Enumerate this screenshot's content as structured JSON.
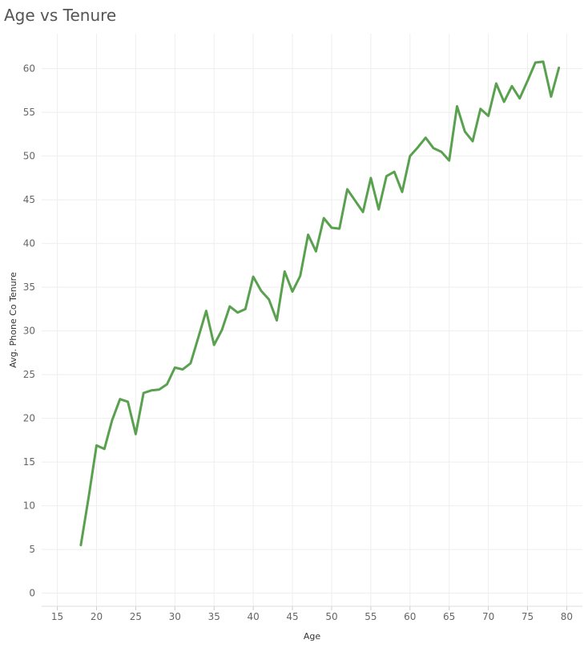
{
  "chart_data": {
    "type": "line",
    "title": "Age vs Tenure",
    "xlabel": "Age",
    "ylabel": "Avg. Phone Co Tenure",
    "xlim": [
      13,
      82
    ],
    "ylim": [
      -1.5,
      64
    ],
    "x_ticks": [
      15,
      20,
      25,
      30,
      35,
      40,
      45,
      50,
      55,
      60,
      65,
      70,
      75,
      80
    ],
    "y_ticks": [
      0,
      5,
      10,
      15,
      20,
      25,
      30,
      35,
      40,
      45,
      50,
      55,
      60
    ],
    "grid": true,
    "color": "#59a14f",
    "series": [
      {
        "x": [
          18,
          19,
          20,
          21,
          22,
          23,
          24,
          25,
          26,
          27,
          28,
          29,
          30,
          31,
          32,
          33,
          34,
          35,
          36,
          37,
          38,
          39,
          40,
          41,
          42,
          43,
          44,
          45,
          46,
          47,
          48,
          49,
          50,
          51,
          52,
          53,
          54,
          55,
          56,
          57,
          58,
          59,
          60,
          61,
          62,
          63,
          64,
          65,
          66,
          67,
          68,
          69,
          70,
          71,
          72,
          73,
          74,
          75,
          76,
          77,
          78,
          79
        ],
        "y": [
          5.5,
          11.0,
          16.9,
          16.5,
          19.8,
          22.2,
          21.9,
          18.2,
          22.9,
          23.2,
          23.3,
          23.9,
          25.8,
          25.6,
          26.3,
          29.3,
          32.3,
          28.4,
          30.1,
          32.8,
          32.1,
          32.5,
          36.2,
          34.6,
          33.6,
          31.2,
          36.8,
          34.5,
          36.3,
          41.0,
          39.1,
          42.9,
          41.8,
          41.7,
          46.2,
          44.9,
          43.6,
          47.5,
          43.9,
          47.7,
          48.2,
          45.9,
          50.0,
          51.0,
          52.1,
          50.9,
          50.5,
          49.5,
          55.7,
          52.8,
          51.7,
          55.4,
          54.6,
          58.3,
          56.2,
          58.0,
          56.6,
          58.6,
          60.7,
          60.8,
          56.8,
          60.1
        ]
      }
    ]
  }
}
